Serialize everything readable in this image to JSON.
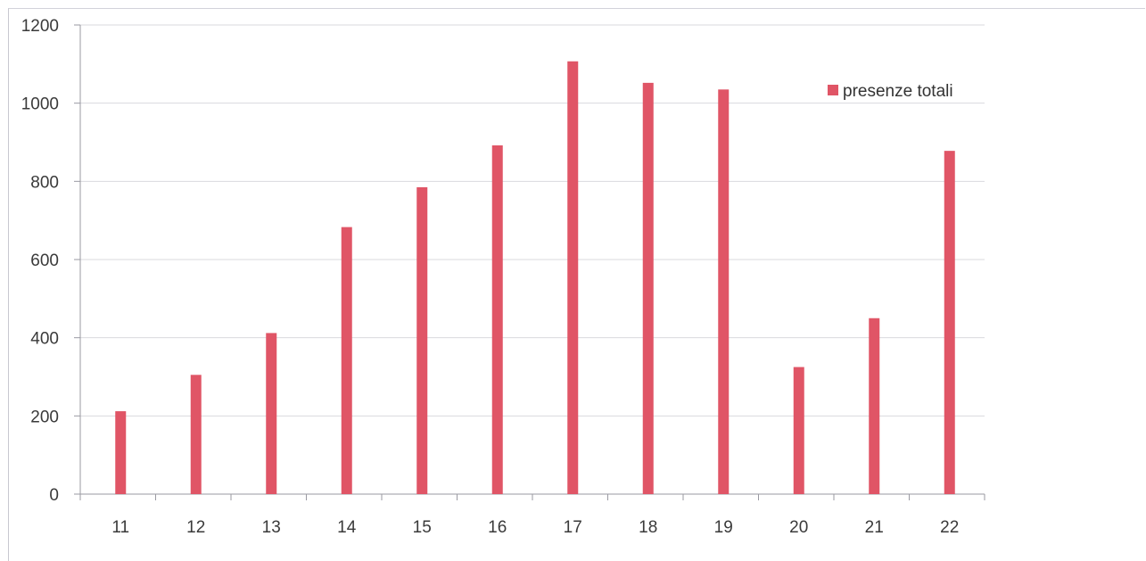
{
  "chart_data": {
    "type": "bar",
    "categories": [
      "11",
      "12",
      "13",
      "14",
      "15",
      "16",
      "17",
      "18",
      "19",
      "20",
      "21",
      "22"
    ],
    "series": [
      {
        "name": "presenze totali",
        "values": [
          212,
          305,
          412,
          683,
          785,
          892,
          1107,
          1052,
          1035,
          325,
          450,
          878
        ],
        "color": "#e05566"
      }
    ],
    "title": "",
    "xlabel": "",
    "ylabel": "",
    "ylim": [
      0,
      1200
    ],
    "yticks": [
      "0",
      "200",
      "400",
      "600",
      "800",
      "1000",
      "1200"
    ],
    "grid": true,
    "legend": "top-right"
  }
}
